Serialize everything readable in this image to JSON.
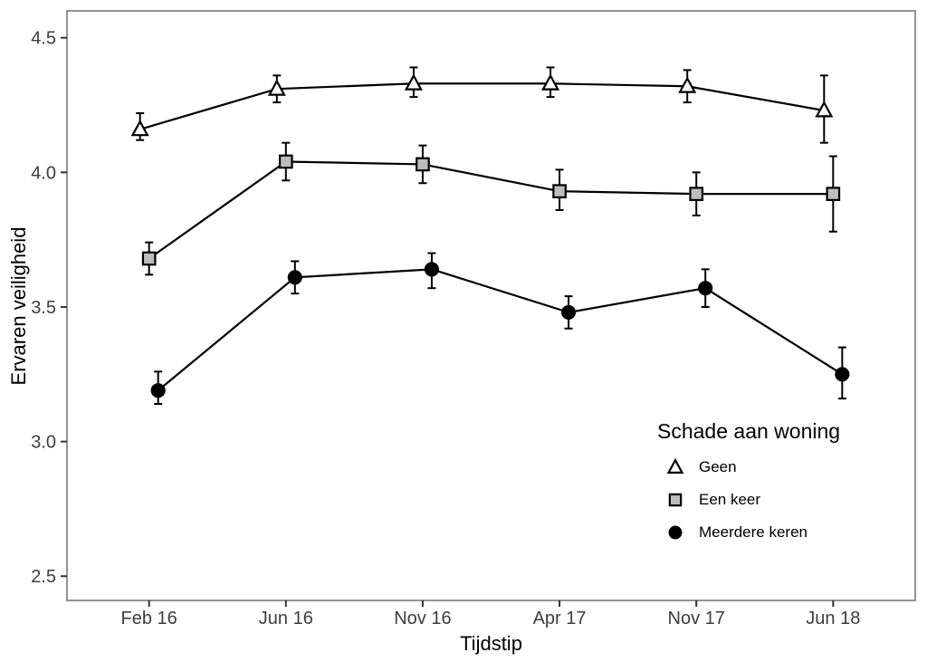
{
  "chart_data": {
    "type": "line",
    "title": "",
    "xlabel": "Tijdstip",
    "ylabel": "Ervaren veiligheid",
    "categories": [
      "Feb 16",
      "Jun 16",
      "Nov 16",
      "Apr 17",
      "Nov 17",
      "Jun 18"
    ],
    "yticks": [
      {
        "value": 2.5,
        "label": "2.5"
      },
      {
        "value": 3.0,
        "label": "3.0"
      },
      {
        "value": 3.5,
        "label": "3.5"
      },
      {
        "value": 4.0,
        "label": "4.0"
      },
      {
        "value": 4.5,
        "label": "4.5"
      }
    ],
    "ylim": [
      2.41,
      4.6
    ],
    "grid": false,
    "legend_title": "Schade aan woning",
    "legend_position": "inside-right-lower",
    "series": [
      {
        "name": "Geen",
        "marker": "triangle-open",
        "marker_fill": "#ffffff",
        "line_color": "#000000",
        "values": [
          4.16,
          4.31,
          4.33,
          4.33,
          4.32,
          4.23
        ],
        "error_low": [
          4.12,
          4.26,
          4.28,
          4.28,
          4.26,
          4.11
        ],
        "error_high": [
          4.22,
          4.36,
          4.39,
          4.39,
          4.38,
          4.36
        ]
      },
      {
        "name": "Een keer",
        "marker": "square-filled",
        "marker_fill": "#bdbdbd",
        "line_color": "#000000",
        "values": [
          3.68,
          4.04,
          4.03,
          3.93,
          3.92,
          3.92
        ],
        "error_low": [
          3.62,
          3.97,
          3.96,
          3.86,
          3.84,
          3.78
        ],
        "error_high": [
          3.74,
          4.11,
          4.1,
          4.01,
          4.0,
          4.06
        ]
      },
      {
        "name": "Meerdere keren",
        "marker": "circle-filled",
        "marker_fill": "#000000",
        "line_color": "#000000",
        "values": [
          3.19,
          3.61,
          3.64,
          3.48,
          3.57,
          3.25
        ],
        "error_low": [
          3.14,
          3.55,
          3.57,
          3.42,
          3.5,
          3.16
        ],
        "error_high": [
          3.26,
          3.67,
          3.7,
          3.54,
          3.64,
          3.35
        ]
      }
    ]
  },
  "colors": {
    "panel_border": "#787878",
    "tick_mark": "#333333",
    "tick_text": "#3d3d3d",
    "series_stroke": "#000000",
    "background": "#ffffff"
  }
}
